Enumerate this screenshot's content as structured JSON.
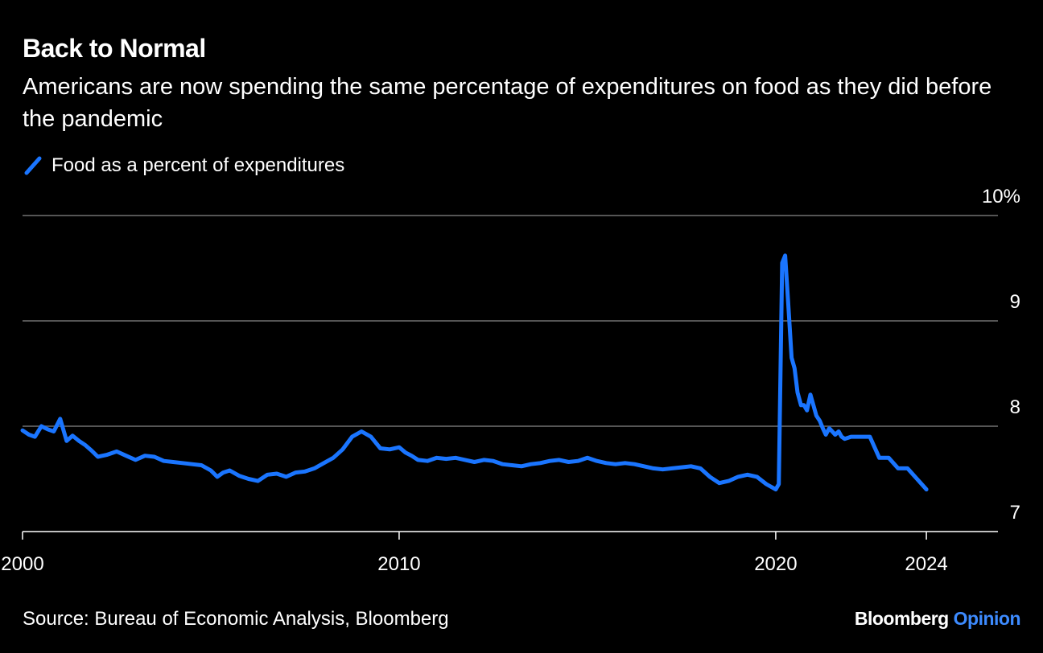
{
  "header": {
    "title": "Back to Normal",
    "subtitle": "Americans are now spending the same percentage of expenditures on food as they did before the pandemic"
  },
  "footer": {
    "source": "Source: Bureau of Economic Analysis, Bloomberg",
    "brand_primary": "Bloomberg",
    "brand_secondary": "Opinion"
  },
  "colors": {
    "background": "#000000",
    "series": "#1a75ff",
    "grid": "#555555",
    "brand_accent": "#3d8bff"
  },
  "chart_data": {
    "type": "line",
    "title": "Back to Normal",
    "subtitle": "Americans are now spending the same percentage of expenditures on food as they did before the pandemic",
    "xlabel": "",
    "ylabel": "",
    "xlim": [
      2000,
      2025.9
    ],
    "ylim": [
      7,
      10
    ],
    "x_ticks": [
      2000,
      2010,
      2020,
      2024
    ],
    "x_tick_labels": [
      "2000",
      "2010",
      "2020",
      "2024"
    ],
    "y_ticks": [
      7,
      8,
      9,
      10
    ],
    "y_tick_labels": [
      "7",
      "8",
      "9",
      "10%"
    ],
    "y_axis_side": "right",
    "grid": true,
    "legend_position": "top-left",
    "series": [
      {
        "name": "Food as a percent of expenditures",
        "x": [
          2000.0,
          2000.17,
          2000.33,
          2000.5,
          2000.67,
          2000.83,
          2001.0,
          2001.17,
          2001.33,
          2001.5,
          2001.67,
          2001.83,
          2002.0,
          2002.25,
          2002.5,
          2002.75,
          2003.0,
          2003.25,
          2003.5,
          2003.75,
          2004.0,
          2004.25,
          2004.5,
          2004.75,
          2005.0,
          2005.17,
          2005.33,
          2005.5,
          2005.75,
          2006.0,
          2006.25,
          2006.5,
          2006.75,
          2007.0,
          2007.25,
          2007.5,
          2007.75,
          2008.0,
          2008.25,
          2008.5,
          2008.75,
          2009.0,
          2009.25,
          2009.5,
          2009.75,
          2010.0,
          2010.17,
          2010.33,
          2010.5,
          2010.75,
          2011.0,
          2011.25,
          2011.5,
          2011.75,
          2012.0,
          2012.25,
          2012.5,
          2012.75,
          2013.0,
          2013.25,
          2013.5,
          2013.75,
          2014.0,
          2014.25,
          2014.5,
          2014.75,
          2015.0,
          2015.25,
          2015.5,
          2015.75,
          2016.0,
          2016.25,
          2016.5,
          2016.75,
          2017.0,
          2017.25,
          2017.5,
          2017.75,
          2018.0,
          2018.25,
          2018.5,
          2018.75,
          2019.0,
          2019.25,
          2019.5,
          2019.75,
          2020.0,
          2020.08,
          2020.17,
          2020.25,
          2020.33,
          2020.42,
          2020.5,
          2020.58,
          2020.67,
          2020.75,
          2020.83,
          2020.92,
          2021.0,
          2021.08,
          2021.17,
          2021.25,
          2021.33,
          2021.42,
          2021.5,
          2021.58,
          2021.67,
          2021.75,
          2021.83,
          2022.0,
          2022.25,
          2022.5,
          2022.75,
          2023.0,
          2023.25,
          2023.5,
          2023.75,
          2024.0
        ],
        "values": [
          7.96,
          7.92,
          7.9,
          8.0,
          7.97,
          7.95,
          8.07,
          7.86,
          7.91,
          7.86,
          7.82,
          7.77,
          7.71,
          7.73,
          7.76,
          7.72,
          7.68,
          7.72,
          7.71,
          7.67,
          7.66,
          7.65,
          7.64,
          7.63,
          7.58,
          7.52,
          7.56,
          7.58,
          7.53,
          7.5,
          7.48,
          7.54,
          7.55,
          7.52,
          7.56,
          7.57,
          7.6,
          7.65,
          7.7,
          7.78,
          7.9,
          7.95,
          7.9,
          7.79,
          7.78,
          7.8,
          7.75,
          7.72,
          7.68,
          7.67,
          7.7,
          7.69,
          7.7,
          7.68,
          7.66,
          7.68,
          7.67,
          7.64,
          7.63,
          7.62,
          7.64,
          7.65,
          7.67,
          7.68,
          7.66,
          7.67,
          7.7,
          7.67,
          7.65,
          7.64,
          7.65,
          7.64,
          7.62,
          7.6,
          7.59,
          7.6,
          7.61,
          7.62,
          7.6,
          7.52,
          7.46,
          7.48,
          7.52,
          7.54,
          7.52,
          7.45,
          7.4,
          7.45,
          9.55,
          9.62,
          9.18,
          8.65,
          8.55,
          8.32,
          8.2,
          8.2,
          8.15,
          8.3,
          8.2,
          8.1,
          8.05,
          7.98,
          7.92,
          7.98,
          7.95,
          7.92,
          7.95,
          7.9,
          7.88,
          7.9,
          7.9,
          7.9,
          7.7,
          7.7,
          7.6,
          7.6,
          7.5,
          7.4
        ]
      }
    ]
  }
}
